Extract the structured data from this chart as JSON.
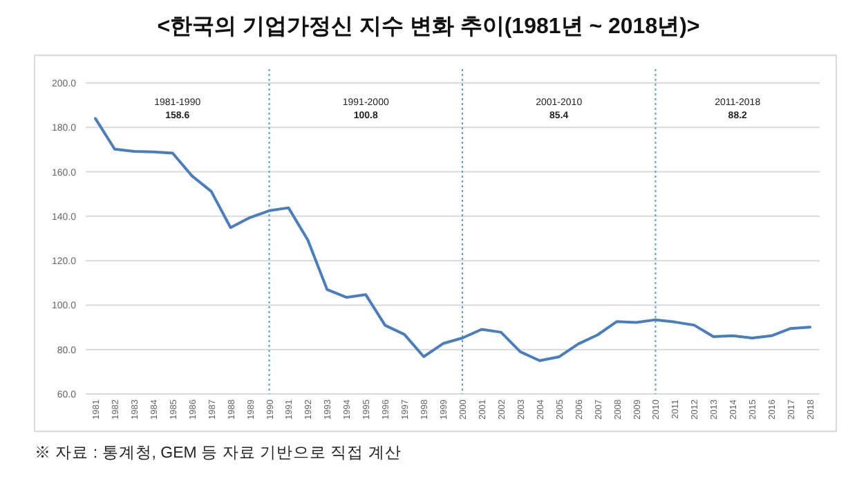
{
  "chart_data": {
    "type": "line",
    "title": "<한국의 기업가정신 지수 변화 추이(1981년 ~ 2018년)>",
    "categories": [
      "1981",
      "1982",
      "1983",
      "1984",
      "1985",
      "1986",
      "1987",
      "1988",
      "1989",
      "1990",
      "1991",
      "1992",
      "1993",
      "1994",
      "1995",
      "1996",
      "1997",
      "1998",
      "1999",
      "2000",
      "2001",
      "2002",
      "2003",
      "2004",
      "2005",
      "2006",
      "2007",
      "2008",
      "2009",
      "2010",
      "2011",
      "2012",
      "2013",
      "2014",
      "2015",
      "2016",
      "2017",
      "2018"
    ],
    "series": [
      {
        "color": "#4a7ebb",
        "values": [
          184,
          170.2,
          169.2,
          169,
          168.4,
          158.2,
          151.2,
          134.9,
          139.4,
          142.5,
          143.8,
          129.3,
          107,
          103.5,
          104.7,
          90.9,
          86.8,
          76.8,
          82.7,
          85.2,
          89.1,
          87.8,
          79,
          75,
          76.7,
          82.5,
          86.6,
          92.6,
          92.2,
          93.4,
          92.4,
          91,
          85.8,
          86.2,
          85.2,
          86.2,
          89.5,
          90.1
        ]
      }
    ],
    "ylim": [
      60,
      200
    ],
    "yticks": [
      {
        "value": 60,
        "label": "60.0"
      },
      {
        "value": 80,
        "label": "80.0"
      },
      {
        "value": 100,
        "label": "100.0"
      },
      {
        "value": 120,
        "label": "120.0"
      },
      {
        "value": 140,
        "label": "140.0"
      },
      {
        "value": 160,
        "label": "160.0"
      },
      {
        "value": 180,
        "label": "180.0"
      },
      {
        "value": 200,
        "label": "200.0"
      }
    ],
    "grid": "y",
    "marker": "none",
    "line_style": "solid",
    "ref_lines": [
      {
        "axis": "x",
        "value": "1990",
        "color": "#5b9bd5",
        "line_style": "dotted"
      },
      {
        "axis": "x",
        "value": "2000",
        "color": "#5b9bd5",
        "line_style": "dotted"
      },
      {
        "axis": "x",
        "value": "2010",
        "color": "#5b9bd5",
        "line_style": "dotted"
      }
    ],
    "annotations": [
      "1981-1990\n158.6",
      "1991-2000\n100.8",
      "2001-2010\n85.4",
      "2011-2018\n88.2",
      "※ 자료 : 통계청, GEM 등 자료 기반으로 직접 계산"
    ]
  }
}
